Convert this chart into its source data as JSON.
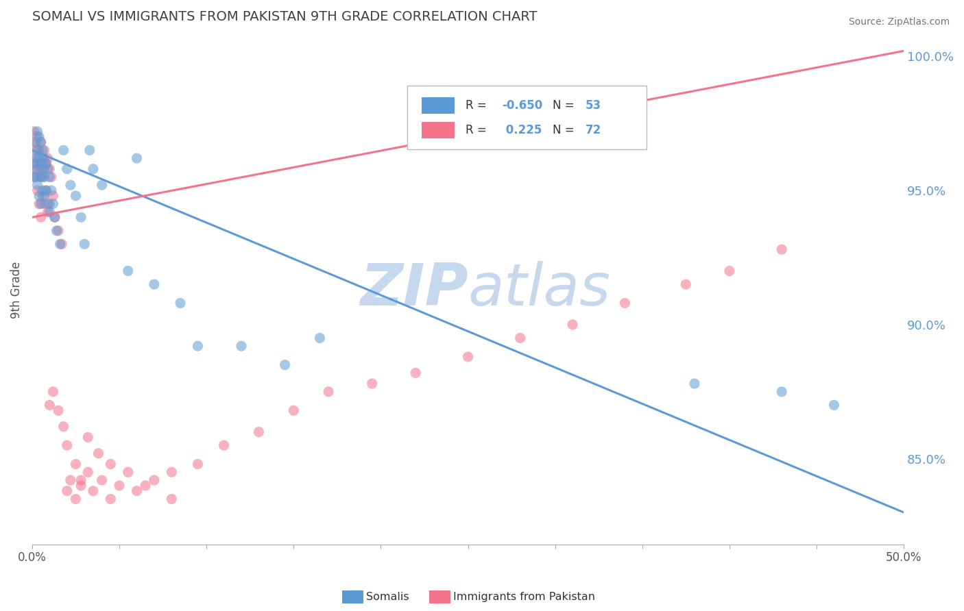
{
  "title": "SOMALI VS IMMIGRANTS FROM PAKISTAN 9TH GRADE CORRELATION CHART",
  "source": "Source: ZipAtlas.com",
  "ylabel": "9th Grade",
  "xlim": [
    0.0,
    0.5
  ],
  "ylim": [
    0.818,
    1.008
  ],
  "xticks": [
    0.0,
    0.05,
    0.1,
    0.15,
    0.2,
    0.25,
    0.3,
    0.35,
    0.4,
    0.45,
    0.5
  ],
  "yticks_right": [
    1.0,
    0.95,
    0.9,
    0.85
  ],
  "ytick_labels_right": [
    "100.0%",
    "95.0%",
    "90.0%",
    "85.0%"
  ],
  "legend_R_blue": "-0.650",
  "legend_N_blue": "53",
  "legend_R_pink": "0.225",
  "legend_N_pink": "72",
  "blue_color": "#5B9BD5",
  "pink_color": "#F4728A",
  "title_color": "#404040",
  "watermark_color": "#C5D8EE",
  "blue_line_x": [
    0.0,
    0.5
  ],
  "blue_line_y": [
    0.965,
    0.83
  ],
  "pink_line_x": [
    0.0,
    0.5
  ],
  "pink_line_y": [
    0.94,
    1.002
  ],
  "somali_x": [
    0.001,
    0.001,
    0.002,
    0.002,
    0.002,
    0.003,
    0.003,
    0.003,
    0.003,
    0.004,
    0.004,
    0.004,
    0.005,
    0.005,
    0.005,
    0.005,
    0.006,
    0.006,
    0.006,
    0.007,
    0.007,
    0.007,
    0.008,
    0.008,
    0.009,
    0.009,
    0.01,
    0.01,
    0.011,
    0.012,
    0.013,
    0.014,
    0.016,
    0.018,
    0.02,
    0.022,
    0.025,
    0.028,
    0.03,
    0.033,
    0.035,
    0.04,
    0.055,
    0.06,
    0.07,
    0.085,
    0.095,
    0.12,
    0.145,
    0.165,
    0.38,
    0.43,
    0.46
  ],
  "somali_y": [
    0.96,
    0.955,
    0.968,
    0.962,
    0.955,
    0.972,
    0.965,
    0.958,
    0.952,
    0.97,
    0.962,
    0.948,
    0.968,
    0.96,
    0.955,
    0.945,
    0.965,
    0.958,
    0.95,
    0.962,
    0.955,
    0.948,
    0.96,
    0.95,
    0.958,
    0.945,
    0.955,
    0.942,
    0.95,
    0.945,
    0.94,
    0.935,
    0.93,
    0.965,
    0.958,
    0.952,
    0.948,
    0.94,
    0.93,
    0.965,
    0.958,
    0.952,
    0.92,
    0.962,
    0.915,
    0.908,
    0.892,
    0.892,
    0.885,
    0.895,
    0.878,
    0.875,
    0.87
  ],
  "pakistan_x": [
    0.001,
    0.001,
    0.001,
    0.002,
    0.002,
    0.002,
    0.003,
    0.003,
    0.003,
    0.004,
    0.004,
    0.004,
    0.005,
    0.005,
    0.005,
    0.005,
    0.006,
    0.006,
    0.006,
    0.007,
    0.007,
    0.007,
    0.008,
    0.008,
    0.009,
    0.009,
    0.01,
    0.01,
    0.011,
    0.012,
    0.013,
    0.015,
    0.017,
    0.02,
    0.022,
    0.025,
    0.028,
    0.032,
    0.035,
    0.04,
    0.045,
    0.05,
    0.06,
    0.07,
    0.08,
    0.01,
    0.012,
    0.015,
    0.018,
    0.02,
    0.025,
    0.028,
    0.032,
    0.038,
    0.045,
    0.055,
    0.065,
    0.08,
    0.095,
    0.11,
    0.13,
    0.15,
    0.17,
    0.195,
    0.22,
    0.25,
    0.28,
    0.31,
    0.34,
    0.375,
    0.4,
    0.43
  ],
  "pakistan_y": [
    0.958,
    0.965,
    0.972,
    0.96,
    0.955,
    0.968,
    0.97,
    0.962,
    0.95,
    0.965,
    0.958,
    0.945,
    0.968,
    0.96,
    0.955,
    0.94,
    0.962,
    0.955,
    0.948,
    0.965,
    0.958,
    0.945,
    0.96,
    0.95,
    0.962,
    0.942,
    0.958,
    0.945,
    0.955,
    0.948,
    0.94,
    0.935,
    0.93,
    0.838,
    0.842,
    0.835,
    0.84,
    0.845,
    0.838,
    0.842,
    0.835,
    0.84,
    0.838,
    0.842,
    0.835,
    0.87,
    0.875,
    0.868,
    0.862,
    0.855,
    0.848,
    0.842,
    0.858,
    0.852,
    0.848,
    0.845,
    0.84,
    0.845,
    0.848,
    0.855,
    0.86,
    0.868,
    0.875,
    0.878,
    0.882,
    0.888,
    0.895,
    0.9,
    0.908,
    0.915,
    0.92,
    0.928
  ],
  "background_color": "#FFFFFF",
  "grid_color": "#CCCCCC"
}
